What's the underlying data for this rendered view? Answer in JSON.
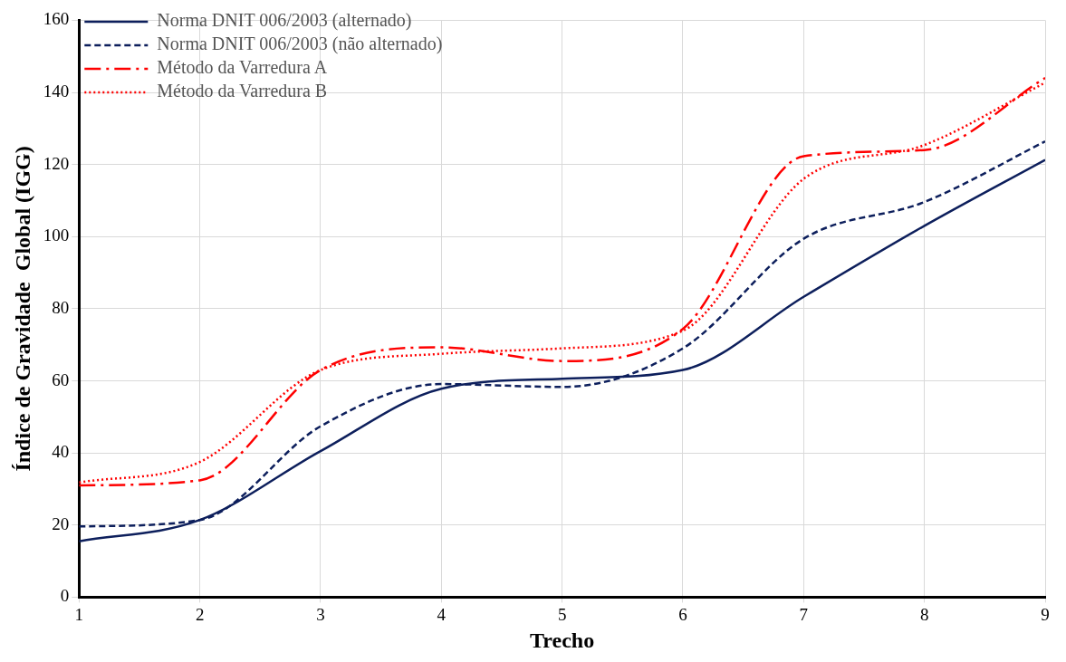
{
  "chart_data": {
    "type": "line",
    "xlabel": "Trecho",
    "ylabel": "Índice de Gravidade  Global (IGG)",
    "x": [
      1,
      2,
      3,
      4,
      5,
      6,
      7,
      8,
      9
    ],
    "series": [
      {
        "name": "Norma DNIT 006/2003 (alternado)",
        "color": "#0d1f5c",
        "line_style": "solid",
        "values": [
          15.5,
          21.4,
          40.5,
          57.8,
          60.6,
          63,
          83.3,
          103,
          121.3
        ]
      },
      {
        "name": "Norma DNIT 006/2003 (não alternado)",
        "color": "#0d1f5c",
        "line_style": "dashed",
        "values": [
          19.6,
          21.4,
          47.4,
          59.1,
          58.3,
          69,
          99.4,
          109.6,
          126.4
        ]
      },
      {
        "name": "Método da Varredura A",
        "color": "#ff0000",
        "line_style": "dashed",
        "values": [
          31,
          32.4,
          63,
          69.3,
          65.5,
          74.4,
          122.3,
          124,
          144
        ]
      },
      {
        "name": "Método da Varredura B",
        "color": "#ff0000",
        "line_style": "dotted",
        "values": [
          31.8,
          37.5,
          63,
          67.5,
          69,
          73.9,
          116,
          125.4,
          142.7
        ]
      }
    ],
    "xlim": [
      1,
      9
    ],
    "xticks": [
      1,
      2,
      3,
      4,
      5,
      6,
      7,
      8,
      9
    ],
    "ylim": [
      0,
      160
    ],
    "yticks": [
      0,
      20,
      40,
      60,
      80,
      100,
      120,
      140,
      160
    ],
    "grid": true,
    "legend": "top left",
    "marker": "none"
  }
}
